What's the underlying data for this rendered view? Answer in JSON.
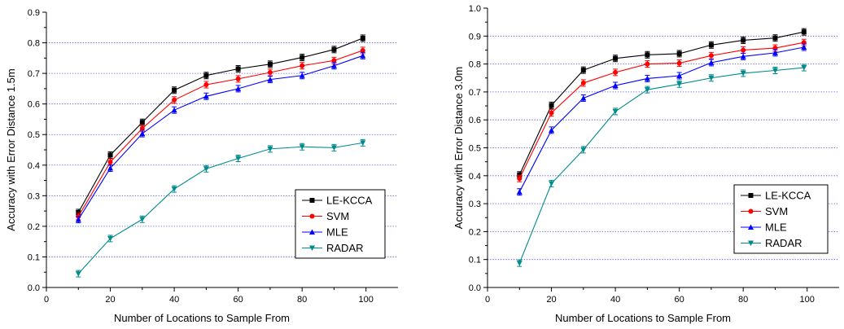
{
  "chart_data": [
    {
      "type": "line",
      "xlabel": "Number of Locations to Sample From",
      "ylabel": "Accuracy with Error Distance 1.5m",
      "xlim": [
        0,
        110
      ],
      "ylim": [
        0,
        0.9
      ],
      "xticks": [
        "0",
        "20",
        "40",
        "60",
        "80",
        "100"
      ],
      "yticks": [
        "0.0",
        "0.1",
        "0.2",
        "0.3",
        "0.4",
        "0.5",
        "0.6",
        "0.7",
        "0.8",
        "0.9"
      ],
      "grid": "horizontal dotted",
      "legend_position": "bottom-right",
      "x": [
        10,
        20,
        30,
        40,
        50,
        60,
        70,
        80,
        90,
        99
      ],
      "series": [
        {
          "name": "LE-KCCA",
          "color": "#000000",
          "marker": "square",
          "values": [
            0.245,
            0.433,
            0.54,
            0.645,
            0.693,
            0.715,
            0.73,
            0.752,
            0.778,
            0.815
          ]
        },
        {
          "name": "SVM",
          "color": "#ff0000",
          "marker": "circle",
          "values": [
            0.232,
            0.41,
            0.52,
            0.613,
            0.663,
            0.682,
            0.703,
            0.725,
            0.742,
            0.775
          ]
        },
        {
          "name": "MLE",
          "color": "#0000ff",
          "marker": "triangle-up",
          "values": [
            0.222,
            0.39,
            0.503,
            0.58,
            0.625,
            0.65,
            0.68,
            0.693,
            0.725,
            0.758
          ]
        },
        {
          "name": "RADAR",
          "color": "#008b8b",
          "marker": "triangle-down",
          "values": [
            0.045,
            0.16,
            0.223,
            0.322,
            0.388,
            0.422,
            0.453,
            0.46,
            0.457,
            0.473
          ]
        }
      ]
    },
    {
      "type": "line",
      "xlabel": "Number of Locations to Sample From",
      "ylabel": "Accuracy with Error Distance 3.0m",
      "xlim": [
        0,
        110
      ],
      "ylim": [
        0,
        1.0
      ],
      "xticks": [
        "0",
        "20",
        "40",
        "60",
        "80",
        "100"
      ],
      "yticks": [
        "0.0",
        "0.1",
        "0.2",
        "0.3",
        "0.4",
        "0.5",
        "0.6",
        "0.7",
        "0.8",
        "0.9",
        "1.0"
      ],
      "grid": "horizontal dotted",
      "legend_position": "bottom-right",
      "x": [
        10,
        20,
        30,
        40,
        50,
        60,
        70,
        80,
        90,
        99
      ],
      "series": [
        {
          "name": "LE-KCCA",
          "color": "#000000",
          "marker": "square",
          "values": [
            0.403,
            0.652,
            0.778,
            0.82,
            0.833,
            0.837,
            0.868,
            0.885,
            0.893,
            0.915
          ]
        },
        {
          "name": "SVM",
          "color": "#ff0000",
          "marker": "circle",
          "values": [
            0.39,
            0.625,
            0.732,
            0.77,
            0.8,
            0.803,
            0.83,
            0.85,
            0.857,
            0.877
          ]
        },
        {
          "name": "MLE",
          "color": "#0000ff",
          "marker": "triangle-up",
          "values": [
            0.342,
            0.563,
            0.678,
            0.723,
            0.748,
            0.758,
            0.805,
            0.827,
            0.84,
            0.86
          ]
        },
        {
          "name": "RADAR",
          "color": "#008b8b",
          "marker": "triangle-down",
          "values": [
            0.087,
            0.372,
            0.493,
            0.63,
            0.708,
            0.728,
            0.75,
            0.767,
            0.777,
            0.787
          ]
        }
      ]
    }
  ]
}
